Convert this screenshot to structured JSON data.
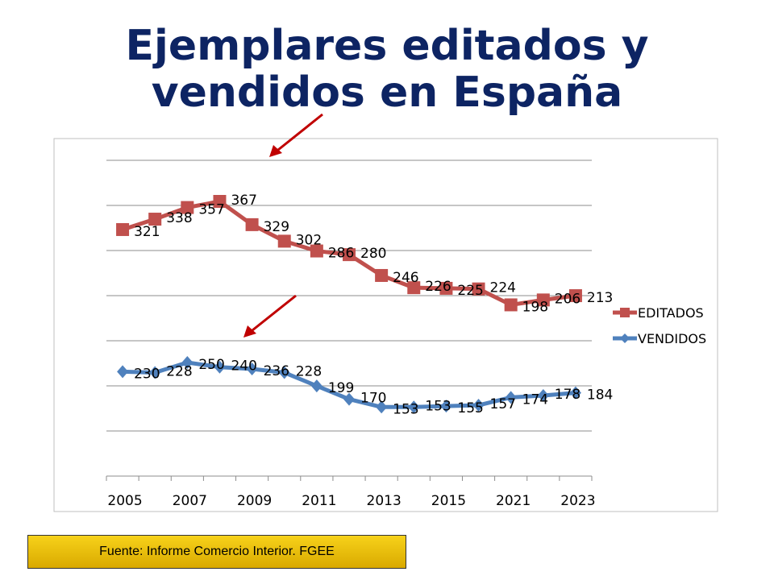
{
  "title_line1": "Ejemplares editados y",
  "title_line2": "vendidos en España",
  "source": "Fuente: Informe Comercio Interior. FGEE",
  "chart_data": {
    "type": "line",
    "title": "Ejemplares editados y vendidos en España",
    "categories": [
      "2005",
      "",
      "2007",
      "",
      "2009",
      "",
      "2011",
      "",
      "2013",
      "",
      "2015",
      "",
      "2021",
      "",
      "2023"
    ],
    "series": [
      {
        "name": "EDITADOS",
        "color": "#c0504d",
        "marker": "square",
        "values": [
          321,
          338,
          357,
          367,
          329,
          302,
          286,
          280,
          246,
          226,
          225,
          224,
          198,
          206,
          213
        ]
      },
      {
        "name": "VENDIDOS",
        "color": "#4f81bd",
        "marker": "diamond",
        "values": [
          230,
          228,
          250,
          240,
          236,
          228,
          199,
          170,
          153,
          153,
          155,
          157,
          174,
          178,
          184
        ]
      }
    ],
    "grid": true,
    "y_axis_labels": false,
    "legend": "right",
    "annotation_arrow_color": "#c00000"
  }
}
